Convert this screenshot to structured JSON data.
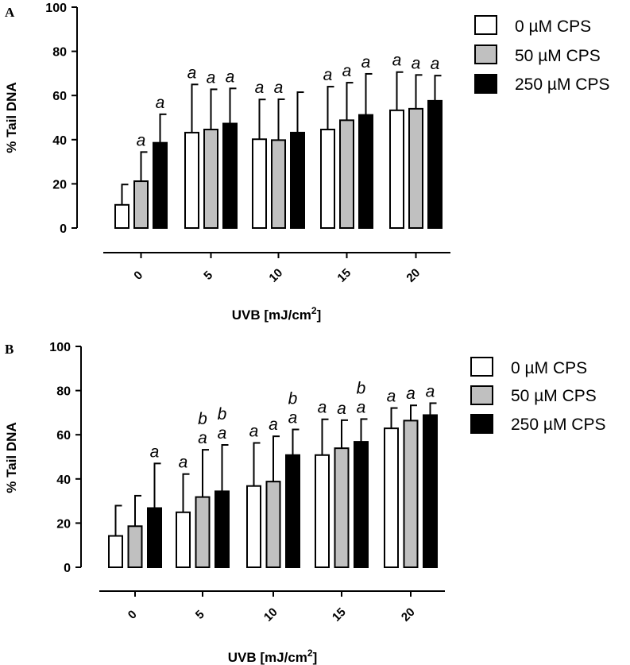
{
  "chart_data": [
    {
      "type": "bar",
      "panel": "A",
      "categories": [
        "0",
        "5",
        "10",
        "15",
        "20"
      ],
      "xlabel": "UVB [mJ/cm",
      "xlabel_sup": "2",
      "xlabel_end": "]",
      "ylabel": "% Tail DNA",
      "ylim": [
        0,
        100
      ],
      "yticks": [
        "0",
        "20",
        "40",
        "60",
        "80",
        "100"
      ],
      "series": [
        {
          "name": "0 µM CPS",
          "color": "#ffffff",
          "values": [
            10.5,
            43.2,
            40.2,
            44.6,
            53.3
          ],
          "errors": [
            9.2,
            21.8,
            18.0,
            19.4,
            17.3
          ]
        },
        {
          "name": "50 µM CPS",
          "color": "#c0c0c0",
          "values": [
            21.2,
            44.6,
            39.8,
            48.8,
            54.0
          ],
          "errors": [
            13.2,
            18.2,
            18.5,
            17.0,
            15.3
          ]
        },
        {
          "name": "250 µM CPS",
          "color": "#000000",
          "values": [
            38.6,
            47.3,
            43.2,
            51.2,
            57.6
          ],
          "errors": [
            12.9,
            15.9,
            18.3,
            18.6,
            11.4
          ]
        }
      ],
      "sig_labels": [
        [
          "",
          "a",
          "a",
          "a",
          "a"
        ],
        [
          "a",
          "a",
          "a",
          "a",
          "a"
        ],
        [
          "a",
          "a",
          "",
          "a",
          "a"
        ]
      ]
    },
    {
      "type": "bar",
      "panel": "B",
      "categories": [
        "0",
        "5",
        "10",
        "15",
        "20"
      ],
      "xlabel": "UVB [mJ/cm",
      "xlabel_sup": "2",
      "xlabel_end": "]",
      "ylabel": "% Tail DNA",
      "ylim": [
        0,
        100
      ],
      "yticks": [
        "0",
        "20",
        "40",
        "60",
        "80",
        "100"
      ],
      "series": [
        {
          "name": "0 µM CPS",
          "color": "#ffffff",
          "values": [
            14.2,
            24.9,
            36.8,
            50.8,
            62.9
          ],
          "errors": [
            13.7,
            17.3,
            19.5,
            16.2,
            9.2
          ]
        },
        {
          "name": "50 µM CPS",
          "color": "#c0c0c0",
          "values": [
            18.6,
            31.8,
            38.8,
            53.9,
            66.4
          ],
          "errors": [
            13.8,
            21.4,
            20.5,
            12.7,
            6.9
          ]
        },
        {
          "name": "250 µM CPS",
          "color": "#000000",
          "values": [
            26.8,
            34.4,
            50.8,
            56.8,
            68.9
          ],
          "errors": [
            20.2,
            21.0,
            11.6,
            10.3,
            5.4
          ]
        }
      ],
      "sig_labels": [
        [
          "",
          "a",
          "a",
          "a",
          "a"
        ],
        [
          "",
          "a/b",
          "a",
          "a",
          "a"
        ],
        [
          "a",
          "a/b",
          "a/b",
          "a/b",
          "a"
        ]
      ]
    }
  ]
}
